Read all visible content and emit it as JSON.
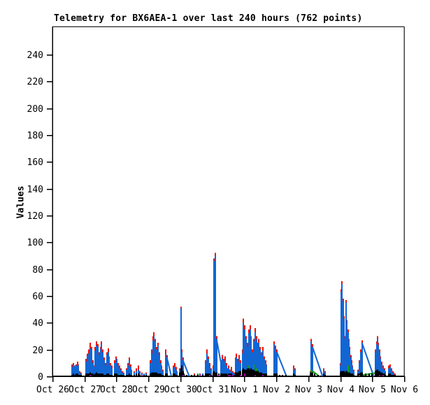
{
  "title": "Telemetry for BX6AEA-1 over last 240 hours (762 points)",
  "colors": {
    "background": "#ffffff",
    "frame": "#444444",
    "axis": "#000000",
    "series_red": "#ee1100",
    "series_blue": "#1166d4",
    "series_green": "#12a012",
    "series_purple": "#990099",
    "series_black": "#000000"
  },
  "chart_data": {
    "type": "line",
    "title": "Telemetry for BX6AEA-1 over last 240 hours (762 points)",
    "xlabel": "",
    "ylabel": "Values",
    "grid": false,
    "legend": "none",
    "ylim": [
      0,
      260
    ],
    "y_axis": {
      "tick_step": 20,
      "tick_labels": [
        "0",
        "20",
        "40",
        "60",
        "80",
        "100",
        "120",
        "140",
        "160",
        "180",
        "200",
        "220",
        "240"
      ]
    },
    "x_axis": {
      "tick_labels": [
        "Oct 26",
        "Oct 27",
        "Oct 28",
        "Oct 29",
        "Oct 30",
        "Oct 31",
        "Nov 1",
        "Nov 2",
        "Nov 3",
        "Nov 4",
        "Nov 5",
        "Nov 6"
      ]
    },
    "series_order_back_to_front": [
      "red",
      "blue",
      "green",
      "black",
      "purple"
    ],
    "samples_format": [
      "x_days_from_Oct26",
      "red",
      "blue",
      "black",
      "green",
      "purple"
    ],
    "samples": [
      [
        0.62,
        9,
        7,
        1,
        0,
        0
      ],
      [
        0.66,
        10,
        9,
        2,
        0,
        0
      ],
      [
        0.7,
        8,
        8,
        1,
        0,
        0
      ],
      [
        0.74,
        9,
        8,
        2,
        0,
        0
      ],
      [
        0.78,
        11,
        9,
        2,
        0,
        0
      ],
      [
        0.82,
        9,
        8,
        1,
        0,
        0
      ],
      [
        0.86,
        4,
        3,
        1,
        0,
        0
      ],
      [
        0.9,
        3,
        2,
        1,
        0,
        0
      ],
      [
        1.06,
        13,
        11,
        2,
        0,
        0
      ],
      [
        1.1,
        17,
        15,
        2,
        0,
        0
      ],
      [
        1.14,
        20,
        17,
        2,
        0,
        0
      ],
      [
        1.18,
        25,
        21,
        3,
        0,
        1
      ],
      [
        1.22,
        22,
        20,
        2,
        0,
        0
      ],
      [
        1.26,
        12,
        10,
        2,
        0,
        0
      ],
      [
        1.3,
        8,
        7,
        1,
        0,
        0
      ],
      [
        1.34,
        22,
        19,
        2,
        0,
        0
      ],
      [
        1.38,
        26,
        23,
        3,
        0,
        0
      ],
      [
        1.42,
        24,
        22,
        2,
        0,
        0
      ],
      [
        1.46,
        18,
        16,
        2,
        0,
        0
      ],
      [
        1.5,
        22,
        20,
        2,
        0,
        0
      ],
      [
        1.54,
        26,
        24,
        2,
        0,
        0
      ],
      [
        1.58,
        20,
        18,
        2,
        0,
        0
      ],
      [
        1.62,
        14,
        12,
        1,
        0,
        0
      ],
      [
        1.66,
        10,
        8,
        1,
        0,
        0
      ],
      [
        1.7,
        18,
        16,
        2,
        0,
        0
      ],
      [
        1.74,
        21,
        18,
        2,
        0,
        0
      ],
      [
        1.78,
        15,
        13,
        1,
        0,
        0
      ],
      [
        1.82,
        10,
        8,
        1,
        0,
        0
      ],
      [
        1.86,
        8,
        6,
        1,
        0,
        0
      ],
      [
        1.94,
        12,
        10,
        2,
        0,
        0
      ],
      [
        1.98,
        15,
        13,
        2,
        0,
        0
      ],
      [
        2.02,
        13,
        11,
        2,
        0,
        0
      ],
      [
        2.06,
        10,
        8,
        1,
        0,
        0
      ],
      [
        2.1,
        8,
        6,
        1,
        2,
        0
      ],
      [
        2.14,
        6,
        5,
        1,
        0,
        0
      ],
      [
        2.18,
        4,
        3,
        1,
        0,
        0
      ],
      [
        2.22,
        3,
        2,
        1,
        0,
        0
      ],
      [
        2.32,
        6,
        5,
        1,
        0,
        0
      ],
      [
        2.36,
        10,
        8,
        1,
        0,
        0
      ],
      [
        2.4,
        14,
        12,
        2,
        0,
        0
      ],
      [
        2.44,
        9,
        7,
        1,
        0,
        0
      ],
      [
        2.48,
        5,
        4,
        1,
        0,
        0
      ],
      [
        2.56,
        4,
        3,
        1,
        0,
        0
      ],
      [
        2.62,
        6,
        4,
        2,
        0,
        0
      ],
      [
        2.68,
        8,
        5,
        2,
        0,
        0
      ],
      [
        2.74,
        4,
        3,
        1,
        0,
        0
      ],
      [
        2.8,
        3,
        2,
        1,
        0,
        1
      ],
      [
        2.86,
        2,
        2,
        1,
        0,
        0
      ],
      [
        2.94,
        3,
        2,
        1,
        0,
        0
      ],
      [
        3.06,
        12,
        10,
        2,
        0,
        0
      ],
      [
        3.1,
        20,
        17,
        3,
        0,
        0
      ],
      [
        3.14,
        30,
        27,
        3,
        0,
        0
      ],
      [
        3.18,
        33,
        30,
        3,
        0,
        0
      ],
      [
        3.22,
        28,
        26,
        3,
        0,
        0
      ],
      [
        3.26,
        22,
        20,
        3,
        0,
        0
      ],
      [
        3.3,
        25,
        23,
        2,
        0,
        0
      ],
      [
        3.34,
        18,
        16,
        2,
        0,
        0
      ],
      [
        3.38,
        12,
        10,
        2,
        0,
        0
      ],
      [
        3.42,
        8,
        6,
        1,
        0,
        0
      ],
      [
        3.46,
        5,
        4,
        1,
        0,
        0
      ],
      [
        3.54,
        20,
        17,
        2,
        0,
        0
      ],
      [
        3.58,
        16,
        14,
        2,
        0,
        0
      ],
      [
        3.78,
        8,
        6,
        2,
        0,
        0
      ],
      [
        3.82,
        10,
        7,
        2,
        0,
        0
      ],
      [
        3.86,
        7,
        5,
        1,
        0,
        0
      ],
      [
        3.9,
        4,
        3,
        1,
        0,
        0
      ],
      [
        3.98,
        6,
        5,
        3,
        0,
        0
      ],
      [
        4.02,
        52,
        51,
        6,
        0,
        0
      ],
      [
        4.05,
        20,
        18,
        8,
        0,
        0
      ],
      [
        4.08,
        14,
        12,
        4,
        0,
        1
      ],
      [
        4.12,
        0,
        0,
        2,
        0,
        0
      ],
      [
        4.2,
        0,
        0,
        1,
        0,
        0
      ],
      [
        4.35,
        0,
        0,
        1,
        0,
        0
      ],
      [
        4.45,
        2,
        1,
        1,
        0,
        0
      ],
      [
        4.55,
        0,
        0,
        1,
        2,
        0
      ],
      [
        4.62,
        0,
        0,
        1,
        0,
        2
      ],
      [
        4.7,
        2,
        2,
        1,
        0,
        0
      ],
      [
        4.8,
        12,
        10,
        2,
        0,
        0
      ],
      [
        4.84,
        20,
        17,
        2,
        0,
        0
      ],
      [
        4.88,
        15,
        13,
        2,
        0,
        0
      ],
      [
        4.92,
        10,
        8,
        2,
        0,
        1
      ],
      [
        4.96,
        6,
        5,
        1,
        0,
        0
      ],
      [
        5.02,
        8,
        6,
        3,
        0,
        0
      ],
      [
        5.05,
        88,
        86,
        4,
        0,
        0
      ],
      [
        5.09,
        92,
        90,
        3,
        0,
        0
      ],
      [
        5.13,
        30,
        28,
        3,
        0,
        0
      ],
      [
        5.2,
        0,
        0,
        2,
        0,
        1
      ],
      [
        5.26,
        12,
        10,
        2,
        0,
        0
      ],
      [
        5.32,
        16,
        13,
        2,
        0,
        0
      ],
      [
        5.36,
        13,
        11,
        2,
        0,
        0
      ],
      [
        5.4,
        15,
        12,
        2,
        0,
        0
      ],
      [
        5.44,
        10,
        8,
        2,
        0,
        0
      ],
      [
        5.48,
        6,
        5,
        1,
        0,
        0
      ],
      [
        5.52,
        8,
        6,
        2,
        0,
        1
      ],
      [
        5.56,
        5,
        4,
        2,
        0,
        1
      ],
      [
        5.6,
        7,
        5,
        2,
        0,
        0
      ],
      [
        5.64,
        4,
        3,
        1,
        0,
        1
      ],
      [
        5.68,
        3,
        2,
        1,
        0,
        0
      ],
      [
        5.72,
        14,
        12,
        3,
        0,
        0
      ],
      [
        5.76,
        17,
        14,
        3,
        1,
        0
      ],
      [
        5.8,
        13,
        11,
        3,
        0,
        0
      ],
      [
        5.84,
        16,
        13,
        4,
        2,
        0
      ],
      [
        5.88,
        12,
        10,
        4,
        0,
        1
      ],
      [
        5.95,
        20,
        17,
        5,
        0,
        0
      ],
      [
        5.98,
        43,
        40,
        6,
        0,
        0
      ],
      [
        6.02,
        38,
        35,
        5,
        0,
        2
      ],
      [
        6.06,
        30,
        28,
        5,
        3,
        0
      ],
      [
        6.1,
        25,
        22,
        6,
        0,
        0
      ],
      [
        6.14,
        35,
        32,
        6,
        8,
        0
      ],
      [
        6.18,
        38,
        35,
        5,
        0,
        0
      ],
      [
        6.22,
        30,
        28,
        6,
        5,
        0
      ],
      [
        6.26,
        20,
        18,
        5,
        0,
        0
      ],
      [
        6.3,
        28,
        26,
        5,
        9,
        0
      ],
      [
        6.34,
        36,
        33,
        4,
        0,
        1
      ],
      [
        6.38,
        30,
        28,
        4,
        6,
        0
      ],
      [
        6.42,
        25,
        22,
        4,
        0,
        0
      ],
      [
        6.46,
        28,
        25,
        3,
        4,
        0
      ],
      [
        6.5,
        22,
        20,
        3,
        0,
        0
      ],
      [
        6.54,
        18,
        16,
        3,
        0,
        0
      ],
      [
        6.58,
        22,
        19,
        2,
        0,
        1
      ],
      [
        6.62,
        15,
        13,
        2,
        0,
        0
      ],
      [
        6.66,
        12,
        10,
        2,
        0,
        0
      ],
      [
        6.7,
        9,
        8,
        2,
        0,
        0
      ],
      [
        6.94,
        26,
        24,
        2,
        0,
        0
      ],
      [
        6.98,
        23,
        21,
        2,
        0,
        0
      ],
      [
        7.02,
        20,
        18,
        2,
        0,
        0
      ],
      [
        7.1,
        0,
        0,
        1,
        0,
        0
      ],
      [
        7.2,
        0,
        0,
        1,
        0,
        0
      ],
      [
        7.3,
        0,
        0,
        1,
        0,
        0
      ],
      [
        7.55,
        8,
        6,
        2,
        0,
        0
      ],
      [
        7.59,
        6,
        5,
        1,
        0,
        0
      ],
      [
        8.06,
        4,
        3,
        2,
        0,
        0
      ],
      [
        8.1,
        28,
        26,
        3,
        5,
        0
      ],
      [
        8.13,
        24,
        22,
        3,
        4,
        0
      ],
      [
        8.2,
        0,
        0,
        2,
        0,
        0
      ],
      [
        8.3,
        0,
        0,
        1,
        0,
        0
      ],
      [
        8.48,
        6,
        5,
        2,
        0,
        0
      ],
      [
        8.52,
        4,
        3,
        1,
        0,
        0
      ],
      [
        9.0,
        10,
        8,
        3,
        0,
        0
      ],
      [
        9.03,
        65,
        63,
        4,
        0,
        0
      ],
      [
        9.06,
        71,
        69,
        4,
        0,
        0
      ],
      [
        9.09,
        58,
        56,
        4,
        0,
        0
      ],
      [
        9.12,
        45,
        43,
        4,
        0,
        0
      ],
      [
        9.15,
        30,
        28,
        3,
        0,
        0
      ],
      [
        9.18,
        57,
        55,
        4,
        0,
        0
      ],
      [
        9.21,
        42,
        40,
        4,
        2,
        0
      ],
      [
        9.24,
        35,
        33,
        3,
        8,
        0
      ],
      [
        9.27,
        28,
        26,
        3,
        0,
        0
      ],
      [
        9.3,
        22,
        20,
        3,
        0,
        0
      ],
      [
        9.33,
        16,
        14,
        2,
        0,
        0
      ],
      [
        9.36,
        12,
        10,
        2,
        0,
        0
      ],
      [
        9.39,
        8,
        7,
        2,
        0,
        0
      ],
      [
        9.42,
        5,
        4,
        1,
        0,
        0
      ],
      [
        9.56,
        5,
        4,
        2,
        0,
        0
      ],
      [
        9.6,
        12,
        10,
        2,
        0,
        1
      ],
      [
        9.64,
        20,
        18,
        3,
        0,
        0
      ],
      [
        9.68,
        27,
        25,
        3,
        0,
        0
      ],
      [
        9.8,
        0,
        0,
        2,
        0,
        0
      ],
      [
        9.9,
        0,
        0,
        2,
        0,
        0
      ],
      [
        10.0,
        0,
        0,
        2,
        0,
        0
      ],
      [
        10.11,
        20,
        18,
        4,
        0,
        0
      ],
      [
        10.14,
        26,
        24,
        5,
        0,
        0
      ],
      [
        10.17,
        30,
        28,
        5,
        0,
        0
      ],
      [
        10.2,
        25,
        23,
        4,
        2,
        0
      ],
      [
        10.23,
        20,
        18,
        4,
        0,
        1
      ],
      [
        10.26,
        15,
        13,
        3,
        0,
        0
      ],
      [
        10.3,
        11,
        9,
        3,
        0,
        0
      ],
      [
        10.34,
        8,
        6,
        2,
        0,
        1
      ],
      [
        10.38,
        6,
        5,
        2,
        0,
        0
      ],
      [
        10.42,
        4,
        3,
        1,
        0,
        0
      ],
      [
        10.52,
        8,
        6,
        2,
        0,
        0
      ],
      [
        10.56,
        9,
        7,
        2,
        0,
        0
      ],
      [
        10.6,
        6,
        5,
        1,
        0,
        0
      ],
      [
        10.64,
        4,
        3,
        1,
        0,
        0
      ],
      [
        10.68,
        3,
        2,
        1,
        0,
        0
      ],
      [
        10.72,
        2,
        1,
        1,
        0,
        0
      ]
    ],
    "ramps_format": [
      "x1",
      "v1",
      "x2",
      "v2"
    ],
    "ramps_blue": [
      [
        3.58,
        14,
        3.72,
        0
      ],
      [
        4.08,
        12,
        4.28,
        0
      ],
      [
        5.13,
        28,
        5.35,
        0
      ],
      [
        7.02,
        18,
        7.32,
        0
      ],
      [
        8.13,
        22,
        8.45,
        0
      ],
      [
        9.68,
        25,
        10.05,
        0
      ]
    ],
    "ramps_green": [
      [
        8.13,
        4,
        8.35,
        0
      ],
      [
        9.7,
        1,
        10.25,
        3
      ]
    ]
  }
}
